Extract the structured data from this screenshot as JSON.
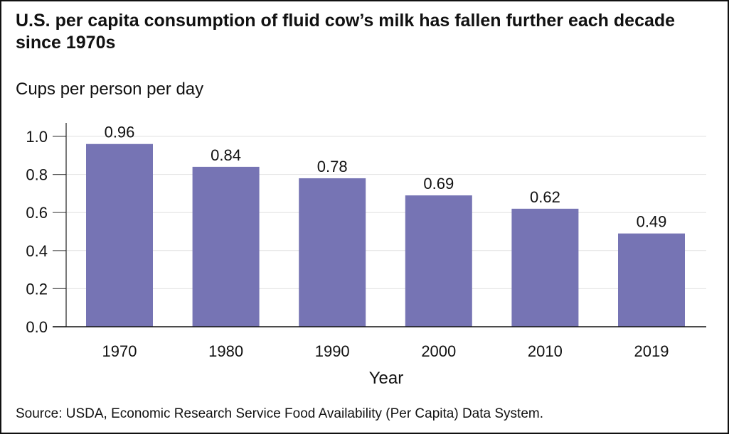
{
  "chart_data": {
    "type": "bar",
    "title": "U.S. per capita consumption of fluid cow’s milk has fallen further each decade since 1970s",
    "ylabel": "Cups per person per day",
    "xlabel": "Year",
    "categories": [
      "1970",
      "1980",
      "1990",
      "2000",
      "2010",
      "2019"
    ],
    "values": [
      0.96,
      0.84,
      0.78,
      0.69,
      0.62,
      0.49
    ],
    "data_labels": [
      "0.96",
      "0.84",
      "0.78",
      "0.69",
      "0.62",
      "0.49"
    ],
    "ylim": [
      0,
      1.0
    ],
    "yticks": [
      "0.0",
      "0.2",
      "0.4",
      "0.6",
      "0.8",
      "1.0"
    ],
    "grid": true,
    "bar_color": "#7674b4",
    "source": "Source: USDA, Economic Research Service Food Availability (Per Capita) Data System."
  }
}
